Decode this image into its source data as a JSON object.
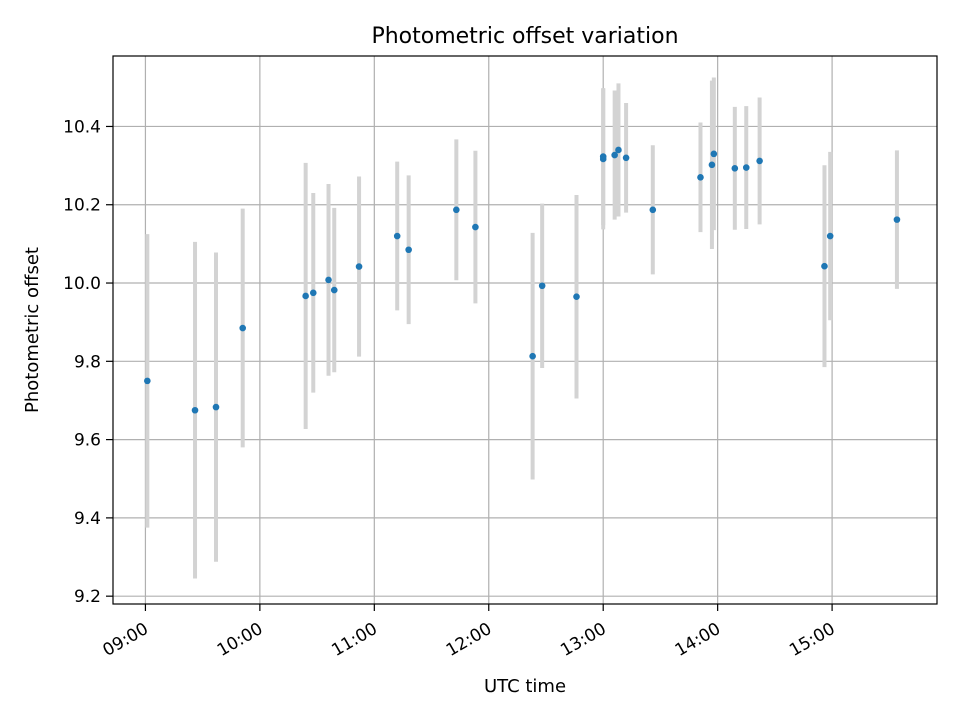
{
  "chart_data": {
    "type": "scatter",
    "title": "Photometric offset variation",
    "xlabel": "UTC time",
    "ylabel": "Photometric offset",
    "x_ticks": [
      "09:00",
      "10:00",
      "11:00",
      "12:00",
      "13:00",
      "14:00",
      "15:00"
    ],
    "y_ticks": [
      "9.2",
      "9.4",
      "9.6",
      "9.8",
      "10.0",
      "10.2",
      "10.4"
    ],
    "xlim": [
      "08:43",
      "15:55"
    ],
    "ylim": [
      9.18,
      10.58
    ],
    "grid": true,
    "colors": {
      "point": "#1f77b4",
      "errorbar": "#d3d3d3",
      "grid": "#b0b0b0"
    },
    "points": [
      {
        "x": "09:01",
        "y": 9.75,
        "err": 0.375
      },
      {
        "x": "09:26",
        "y": 9.675,
        "err": 0.43
      },
      {
        "x": "09:37",
        "y": 9.683,
        "err": 0.395
      },
      {
        "x": "09:51",
        "y": 9.885,
        "err": 0.305
      },
      {
        "x": "10:24",
        "y": 9.967,
        "err": 0.34
      },
      {
        "x": "10:28",
        "y": 9.975,
        "err": 0.255
      },
      {
        "x": "10:36",
        "y": 10.008,
        "err": 0.245
      },
      {
        "x": "10:39",
        "y": 9.982,
        "err": 0.21
      },
      {
        "x": "10:52",
        "y": 10.042,
        "err": 0.23
      },
      {
        "x": "11:12",
        "y": 10.12,
        "err": 0.19
      },
      {
        "x": "11:18",
        "y": 10.085,
        "err": 0.19
      },
      {
        "x": "11:43",
        "y": 10.187,
        "err": 0.18
      },
      {
        "x": "11:53",
        "y": 10.143,
        "err": 0.195
      },
      {
        "x": "12:23",
        "y": 9.813,
        "err": 0.315
      },
      {
        "x": "12:28",
        "y": 9.993,
        "err": 0.21
      },
      {
        "x": "12:46",
        "y": 9.965,
        "err": 0.26
      },
      {
        "x": "13:00",
        "y": 10.317,
        "err": 0.18
      },
      {
        "x": "13:00",
        "y": 10.323,
        "err": 0.175
      },
      {
        "x": "13:06",
        "y": 10.327,
        "err": 0.165
      },
      {
        "x": "13:08",
        "y": 10.34,
        "err": 0.17
      },
      {
        "x": "13:12",
        "y": 10.32,
        "err": 0.14
      },
      {
        "x": "13:26",
        "y": 10.187,
        "err": 0.165
      },
      {
        "x": "13:51",
        "y": 10.27,
        "err": 0.14
      },
      {
        "x": "13:57",
        "y": 10.302,
        "err": 0.215
      },
      {
        "x": "13:58",
        "y": 10.33,
        "err": 0.195
      },
      {
        "x": "14:09",
        "y": 10.293,
        "err": 0.157
      },
      {
        "x": "14:15",
        "y": 10.295,
        "err": 0.157
      },
      {
        "x": "14:22",
        "y": 10.312,
        "err": 0.162
      },
      {
        "x": "14:56",
        "y": 10.043,
        "err": 0.258
      },
      {
        "x": "14:59",
        "y": 10.12,
        "err": 0.215
      },
      {
        "x": "15:34",
        "y": 10.162,
        "err": 0.177
      }
    ]
  }
}
